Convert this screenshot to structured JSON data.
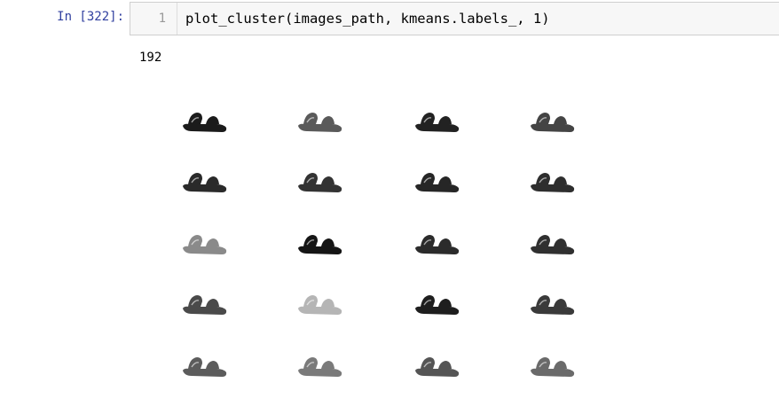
{
  "cell": {
    "prompt": "In [322]:",
    "line_number": "1",
    "code": "plot_cluster(images_path, kmeans.labels_, 1)"
  },
  "output": {
    "count_text": "192"
  },
  "figure": {
    "rows": 5,
    "cols": 4,
    "thumbnails": [
      {
        "icon": "sandal-icon",
        "tone": "#1b1b1b"
      },
      {
        "icon": "sandal-icon",
        "tone": "#5a5a5a"
      },
      {
        "icon": "sandal-icon",
        "tone": "#222222"
      },
      {
        "icon": "sandal-icon",
        "tone": "#444444"
      },
      {
        "icon": "sandal-icon",
        "tone": "#2a2a2a"
      },
      {
        "icon": "sandal-icon",
        "tone": "#333333"
      },
      {
        "icon": "sandal-icon",
        "tone": "#262626"
      },
      {
        "icon": "sandal-icon",
        "tone": "#2e2e2e"
      },
      {
        "icon": "sandal-icon",
        "tone": "#8a8a8a"
      },
      {
        "icon": "sandal-icon",
        "tone": "#151515"
      },
      {
        "icon": "sandal-icon",
        "tone": "#2b2b2b"
      },
      {
        "icon": "sandal-icon",
        "tone": "#303030"
      },
      {
        "icon": "sandal-icon",
        "tone": "#4a4a4a"
      },
      {
        "icon": "sandal-icon",
        "tone": "#b5b5b5"
      },
      {
        "icon": "sandal-icon",
        "tone": "#1e1e1e"
      },
      {
        "icon": "sandal-icon",
        "tone": "#3a3a3a"
      },
      {
        "icon": "sandal-icon",
        "tone": "#5c5c5c"
      },
      {
        "icon": "sandal-icon",
        "tone": "#7a7a7a"
      },
      {
        "icon": "sandal-icon",
        "tone": "#555555"
      },
      {
        "icon": "sandal-icon",
        "tone": "#6a6a6a"
      }
    ]
  }
}
